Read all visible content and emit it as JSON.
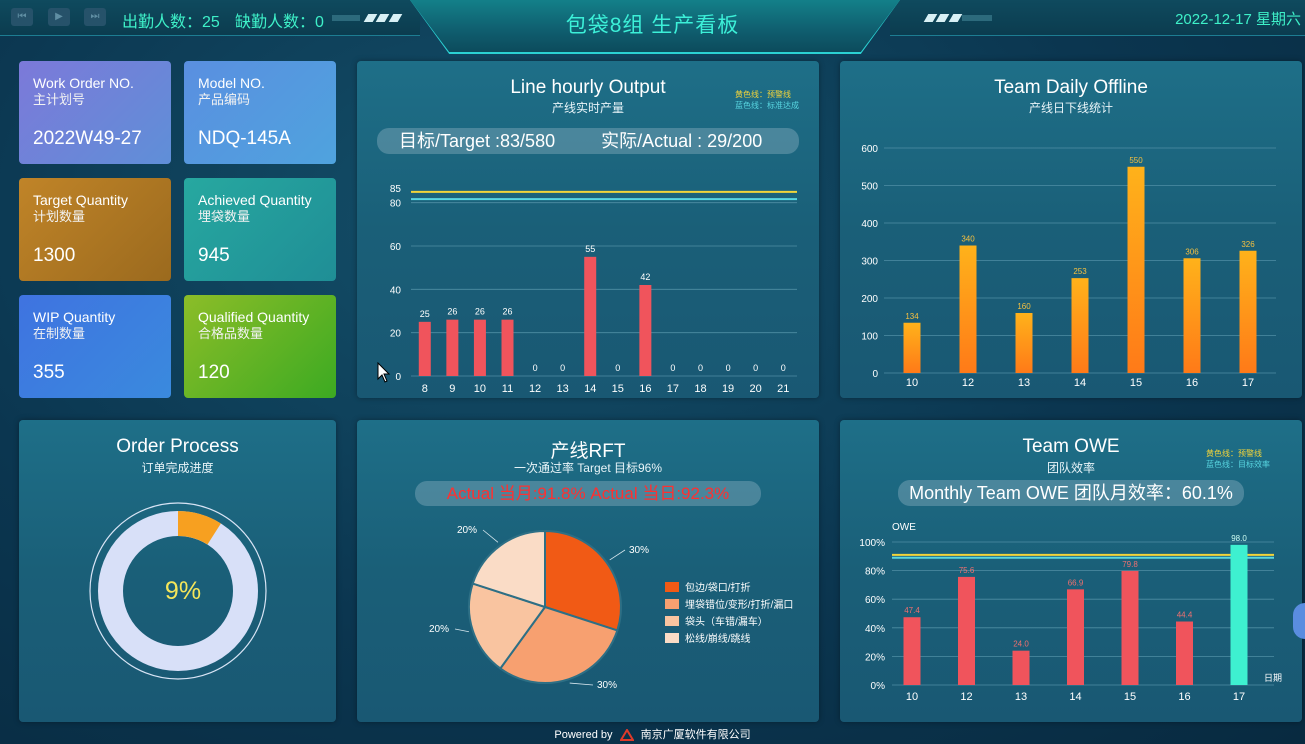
{
  "header": {
    "attendance": "出勤人数：25",
    "absence": "缺勤人数：0",
    "title": "包袋8组 生产看板",
    "date": "2022-12-17 星期六"
  },
  "cards": [
    {
      "en": "Work Order NO.",
      "cn": "主计划号",
      "value": "2022W49-27",
      "color": "#6f84d9"
    },
    {
      "en": "Model NO.",
      "cn": "产品编码",
      "value": "NDQ-145A",
      "color": "#559ade"
    },
    {
      "en": "Target Quantity",
      "cn": "计划数量",
      "value": "1300",
      "color": "#b07a24"
    },
    {
      "en": "Achieved Quantity",
      "cn": "埋袋数量",
      "value": "945",
      "color": "#239c9c"
    },
    {
      "en": "WIP Quantity",
      "cn": "在制数量",
      "value": "355",
      "color": "#3c80df"
    },
    {
      "en": "Qualified Quantity",
      "cn": "合格品数量",
      "value": "120",
      "color": "#5bb426"
    }
  ],
  "hourly": {
    "title": "Line hourly Output",
    "subtitle": "产线实时产量",
    "legend_yellow": "黄色线：预警线",
    "legend_blue": "蓝色线：标准达成",
    "target": "目标/Target :83/580",
    "actual": "实际/Actual : 29/200",
    "chart_data": {
      "type": "bar",
      "categories": [
        "8",
        "9",
        "10",
        "11",
        "12",
        "13",
        "14",
        "15",
        "16",
        "17",
        "18",
        "19",
        "20",
        "21"
      ],
      "values": [
        25,
        26,
        26,
        26,
        0,
        0,
        55,
        0,
        42,
        0,
        0,
        0,
        0,
        0
      ],
      "yticks": [
        0,
        20,
        40,
        60,
        80,
        85
      ],
      "ylim": [
        0,
        90
      ],
      "reference_lines": [
        {
          "value": 85,
          "color": "#f2d43a"
        },
        {
          "value": 83,
          "color": "#58d5e0"
        }
      ],
      "bar_color": "#f0545c"
    }
  },
  "daily": {
    "title": "Team Daily Offline",
    "subtitle": "产线日下线统计",
    "chart_data": {
      "type": "bar",
      "categories": [
        "10",
        "12",
        "13",
        "14",
        "15",
        "16",
        "17"
      ],
      "values": [
        134,
        340,
        160,
        253,
        550,
        306,
        326
      ],
      "yticks": [
        0,
        100,
        200,
        300,
        400,
        500,
        600
      ],
      "ylim": [
        0,
        600
      ],
      "bar_color": "#ff9f1c"
    }
  },
  "order": {
    "title": "Order Process",
    "subtitle": "订单完成进度",
    "percent_label": "9%",
    "percent": 9
  },
  "rft": {
    "title": "产线RFT",
    "subtitle": "一次通过率   Target 目标96%",
    "actual": "Actual 当月:91.8%    Actual 当日:92.3%",
    "chart_data": {
      "type": "pie",
      "slices": [
        {
          "label": "30%",
          "value": 30,
          "name": "包边/袋口/打折",
          "color": "#f15a15"
        },
        {
          "label": "30%",
          "value": 30,
          "name": "埋袋错位/变形/打折/漏口",
          "color": "#f7a070"
        },
        {
          "label": "20%",
          "value": 20,
          "name": "袋头（车错/漏车）",
          "color": "#f9c4a0"
        },
        {
          "label": "20%",
          "value": 20,
          "name": "松线/崩线/跳线",
          "color": "#fadcc6"
        }
      ]
    }
  },
  "owe": {
    "title": "Team OWE",
    "subtitle": "团队效率",
    "legend_yellow": "黄色线：预警线",
    "legend_blue": "蓝色线：目标效率",
    "monthly": "Monthly Team OWE 团队月效率：60.1%",
    "chart_data": {
      "type": "bar",
      "categories": [
        "10",
        "12",
        "13",
        "14",
        "15",
        "16",
        "17"
      ],
      "values": [
        47.4,
        75.6,
        24.0,
        66.9,
        79.8,
        44.4,
        98.0
      ],
      "value_labels": [
        "47.4",
        "75.6",
        "24.0",
        "66.9",
        "79.8",
        "44.4",
        "98.0"
      ],
      "ylabel": "OWE",
      "xlabel": "日期",
      "yticks": [
        "0%",
        "20%",
        "40%",
        "60%",
        "80%",
        "100%"
      ],
      "ylim": [
        0,
        100
      ],
      "reference_lines": [
        {
          "value": 91,
          "color": "#f2d43a"
        },
        {
          "value": 89,
          "color": "#58d5e0"
        }
      ],
      "bar_colors": [
        "#f0545c",
        "#f0545c",
        "#f0545c",
        "#f0545c",
        "#f0545c",
        "#f0545c",
        "#3ef0d0"
      ]
    }
  },
  "footer": {
    "powered": "Powered by",
    "company": "南京广厦软件有限公司"
  }
}
